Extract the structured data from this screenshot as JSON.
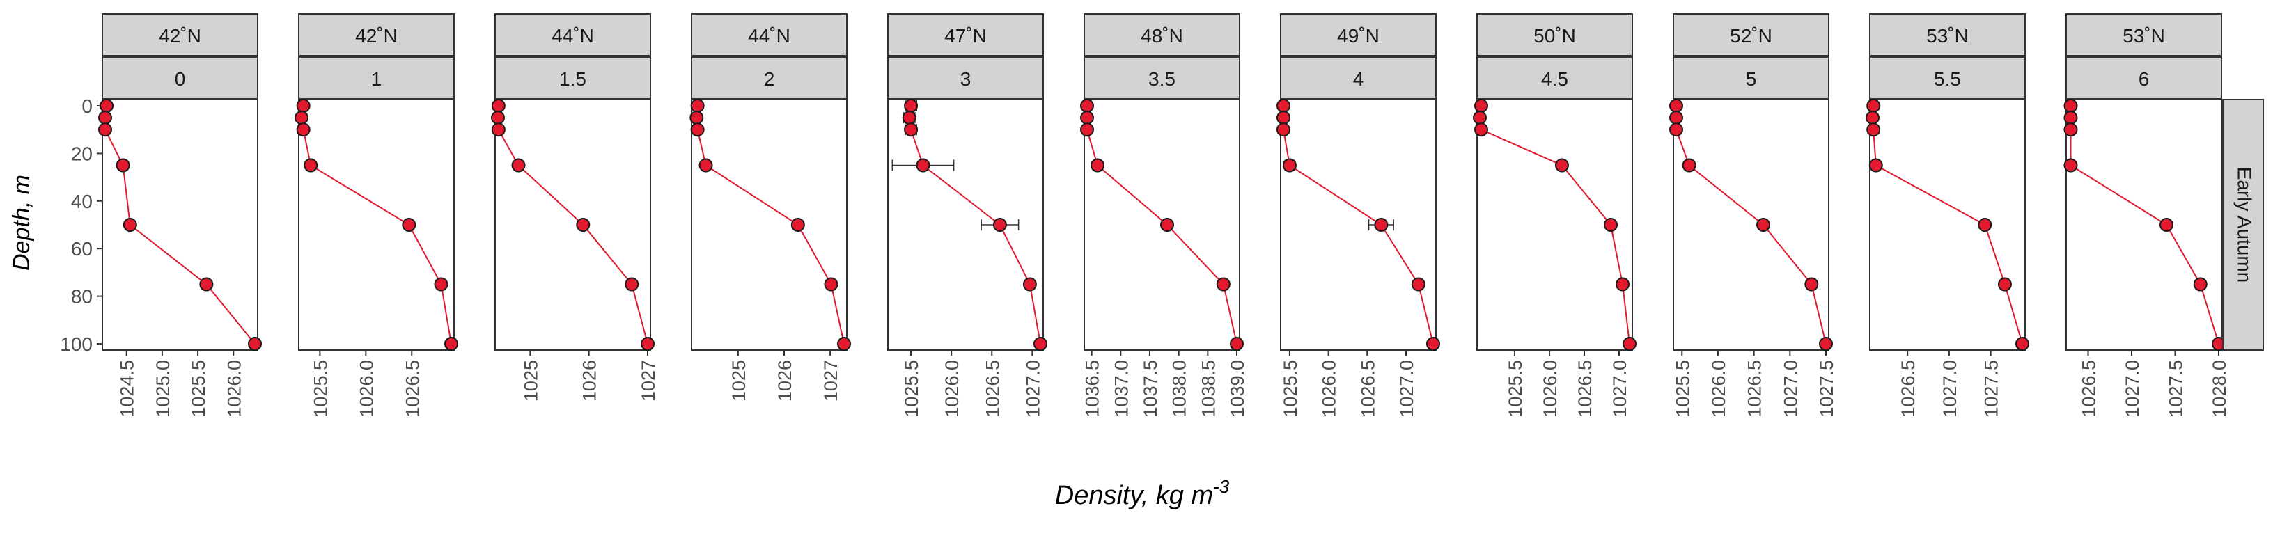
{
  "chart_data": {
    "type": "scatter",
    "xlabel_main": "Density, kg m",
    "xlabel_sup": "-3",
    "ylabel": "Depth, m",
    "row_strip": "Early Autumn",
    "y_axis": {
      "min": 0,
      "max": 100,
      "reversed": true,
      "ticks": [
        "0",
        "20",
        "40",
        "60",
        "80",
        "100"
      ]
    },
    "style": {
      "point_fill": "#e31a2e",
      "line_color": "#e31a2e",
      "strip_fill": "#d3d3d3"
    },
    "depths": [
      0,
      5,
      10,
      25,
      50,
      75,
      100
    ],
    "panels": [
      {
        "lat": "42˚N",
        "lon": "0",
        "xlim": [
          1024.2,
          1026.3
        ],
        "ticks": [
          1024.5,
          1025.0,
          1025.5,
          1026.0
        ],
        "tick_labels": [
          "1024.5",
          "1025.0",
          "1025.5",
          "1026.0"
        ],
        "values": [
          1024.22,
          1024.2,
          1024.2,
          1024.45,
          1024.55,
          1025.62,
          1026.3
        ],
        "err": [
          0,
          0,
          0,
          0,
          0,
          0,
          0
        ]
      },
      {
        "lat": "42˚N",
        "lon": "1",
        "xlim": [
          1025.3,
          1026.93
        ],
        "ticks": [
          1025.5,
          1026.0,
          1026.5
        ],
        "tick_labels": [
          "1025.5",
          "1026.0",
          "1026.5"
        ],
        "values": [
          1025.32,
          1025.3,
          1025.32,
          1025.4,
          1026.47,
          1026.82,
          1026.93
        ],
        "err": [
          0,
          0,
          0,
          0,
          0,
          0,
          0
        ]
      },
      {
        "lat": "44˚N",
        "lon": "1.5",
        "xlim": [
          1024.45,
          1027.0
        ],
        "ticks": [
          1025,
          1026,
          1027
        ],
        "tick_labels": [
          "1025",
          "1026",
          "1027"
        ],
        "values": [
          1024.46,
          1024.45,
          1024.46,
          1024.8,
          1025.9,
          1026.73,
          1027.0
        ],
        "err": [
          0,
          0,
          0,
          0,
          0,
          0,
          0
        ]
      },
      {
        "lat": "44˚N",
        "lon": "2",
        "xlim": [
          1024.05,
          1027.3
        ],
        "ticks": [
          1025,
          1026,
          1027
        ],
        "tick_labels": [
          "1025",
          "1026",
          "1027"
        ],
        "values": [
          1024.12,
          1024.1,
          1024.12,
          1024.3,
          1026.3,
          1027.02,
          1027.3
        ],
        "err": [
          0,
          0,
          0,
          0,
          0,
          0,
          0
        ]
      },
      {
        "lat": "47˚N",
        "lon": "3",
        "xlim": [
          1025.25,
          1027.1
        ],
        "ticks": [
          1025.5,
          1026.0,
          1026.5,
          1027.0
        ],
        "tick_labels": [
          "1025.5",
          "1026.0",
          "1026.5",
          "1027.0"
        ],
        "values": [
          1025.5,
          1025.48,
          1025.5,
          1025.65,
          1026.6,
          1026.97,
          1027.1
        ],
        "err": [
          0.07,
          0.07,
          0.07,
          0.38,
          0.23,
          0,
          0
        ]
      },
      {
        "lat": "48˚N",
        "lon": "3.5",
        "xlim": [
          1036.42,
          1039.0
        ],
        "ticks": [
          1036.5,
          1037.0,
          1037.5,
          1038.0,
          1038.5,
          1039.0
        ],
        "tick_labels": [
          "1036.5",
          "1037.0",
          "1037.5",
          "1038.0",
          "1038.5",
          "1039.0"
        ],
        "values": [
          1036.42,
          1036.42,
          1036.42,
          1036.6,
          1037.8,
          1038.77,
          1039.0
        ],
        "err": [
          0,
          0,
          0,
          0,
          0,
          0,
          0
        ]
      },
      {
        "lat": "49˚N",
        "lon": "4",
        "xlim": [
          1025.42,
          1027.35
        ],
        "ticks": [
          1025.5,
          1026.0,
          1026.5,
          1027.0
        ],
        "tick_labels": [
          "1025.5",
          "1026.0",
          "1026.5",
          "1027.0"
        ],
        "values": [
          1025.42,
          1025.42,
          1025.42,
          1025.5,
          1026.68,
          1027.16,
          1027.35
        ],
        "err": [
          0,
          0,
          0,
          0.06,
          0.16,
          0,
          0
        ]
      },
      {
        "lat": "50˚N",
        "lon": "4.5",
        "xlim": [
          1025.0,
          1027.15
        ],
        "ticks": [
          1025.5,
          1026.0,
          1026.5,
          1027.0
        ],
        "tick_labels": [
          "1025.5",
          "1026.0",
          "1026.5",
          "1027.0"
        ],
        "values": [
          1025.02,
          1025.0,
          1025.02,
          1026.18,
          1026.88,
          1027.05,
          1027.15
        ],
        "err": [
          0,
          0,
          0,
          0,
          0,
          0,
          0
        ]
      },
      {
        "lat": "52˚N",
        "lon": "5",
        "xlim": [
          1025.42,
          1027.5
        ],
        "ticks": [
          1025.5,
          1026.0,
          1026.5,
          1027.0,
          1027.5
        ],
        "tick_labels": [
          "1025.5",
          "1026.0",
          "1026.5",
          "1027.0",
          "1027.5"
        ],
        "values": [
          1025.42,
          1025.42,
          1025.42,
          1025.6,
          1026.63,
          1027.3,
          1027.5
        ],
        "err": [
          0,
          0,
          0,
          0,
          0,
          0,
          0
        ]
      },
      {
        "lat": "53˚N",
        "lon": "5.5",
        "xlim": [
          1026.08,
          1027.88
        ],
        "ticks": [
          1026.5,
          1027.0,
          1027.5
        ],
        "tick_labels": [
          "1026.5",
          "1027.0",
          "1027.5"
        ],
        "values": [
          1026.09,
          1026.08,
          1026.09,
          1026.12,
          1027.43,
          1027.67,
          1027.88
        ],
        "err": [
          0,
          0,
          0,
          0,
          0,
          0,
          0
        ]
      },
      {
        "lat": "53˚N",
        "lon": "6",
        "xlim": [
          1026.28,
          1028.0
        ],
        "ticks": [
          1026.5,
          1027.0,
          1027.5,
          1028.0
        ],
        "tick_labels": [
          "1026.5",
          "1027.0",
          "1027.5",
          "1028.0"
        ],
        "values": [
          1026.3,
          1026.3,
          1026.3,
          1026.3,
          1027.4,
          1027.79,
          1028.0
        ],
        "err": [
          0,
          0,
          0,
          0,
          0,
          0,
          0
        ]
      }
    ]
  }
}
